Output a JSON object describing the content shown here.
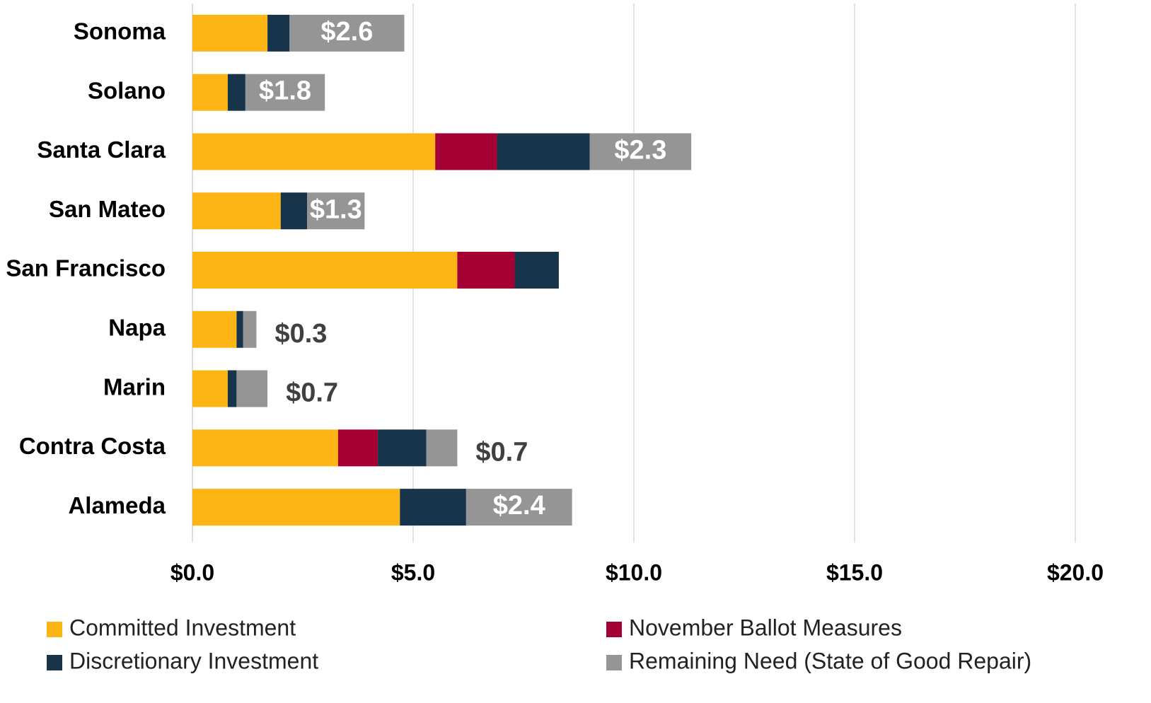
{
  "chart_data": {
    "type": "stacked-bar",
    "orientation": "horizontal",
    "categories": [
      "Sonoma",
      "Solano",
      "Santa Clara",
      "San Mateo",
      "San Francisco",
      "Napa",
      "Marin",
      "Contra Costa",
      "Alameda"
    ],
    "series": [
      {
        "name": "Committed Investment",
        "color": "#FDB515",
        "values": [
          1.7,
          0.8,
          5.5,
          2.0,
          6.0,
          1.0,
          0.8,
          3.3,
          4.7
        ]
      },
      {
        "name": "November Ballot Measures",
        "color": "#A50034",
        "values": [
          null,
          null,
          1.4,
          null,
          1.3,
          null,
          null,
          0.9,
          null
        ]
      },
      {
        "name": "Discretionary Investment",
        "color": "#17344B",
        "values": [
          0.5,
          0.4,
          2.1,
          0.6,
          1.0,
          0.15,
          0.2,
          1.1,
          1.5
        ]
      },
      {
        "name": "Remaining Need (State of Good Repair)",
        "color": "#959595",
        "values": [
          2.6,
          1.8,
          2.3,
          1.3,
          null,
          0.3,
          0.7,
          0.7,
          2.4
        ],
        "value_labels": [
          "$2.6",
          "$1.8",
          "$2.3",
          "$1.3",
          null,
          "$0.3",
          "$0.7",
          "$0.7",
          "$2.4"
        ]
      }
    ],
    "xlim": [
      0,
      20
    ],
    "xticks": [
      {
        "value": 0,
        "label": "$0.0"
      },
      {
        "value": 5,
        "label": "$5.0"
      },
      {
        "value": 10,
        "label": "$10.0"
      },
      {
        "value": 15,
        "label": "$15.0"
      },
      {
        "value": 20,
        "label": "$20.0"
      }
    ],
    "grid": true,
    "legend": "bottom"
  }
}
